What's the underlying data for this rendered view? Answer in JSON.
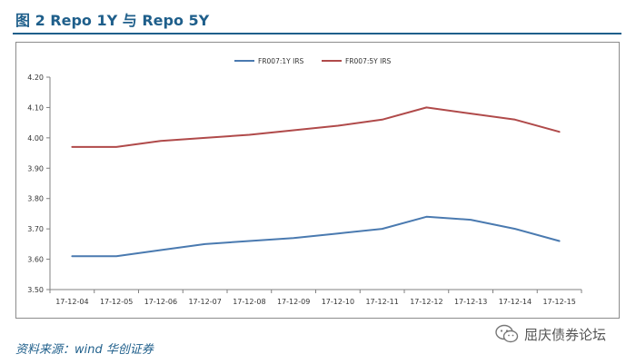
{
  "figure": {
    "title": "图 2 Repo 1Y 与 Repo 5Y",
    "source": "资料来源：wind 华创证券",
    "watermark": "屈庆债券论坛"
  },
  "colors": {
    "title": "#1f5f8b",
    "series_1": "#4a7ab0",
    "series_2": "#b04a4a"
  },
  "chart_data": {
    "type": "line",
    "categories": [
      "17-12-04",
      "17-12-05",
      "17-12-06",
      "17-12-07",
      "17-12-08",
      "17-12-09",
      "17-12-10",
      "17-12-11",
      "17-12-12",
      "17-12-13",
      "17-12-14",
      "17-12-15"
    ],
    "series": [
      {
        "name": "FR007:1Y IRS",
        "color": "#4a7ab0",
        "values": [
          3.61,
          3.61,
          3.63,
          3.65,
          3.66,
          3.67,
          3.685,
          3.7,
          3.74,
          3.73,
          3.7,
          3.66
        ]
      },
      {
        "name": "FR007:5Y IRS",
        "color": "#b04a4a",
        "values": [
          3.97,
          3.97,
          3.99,
          4.0,
          4.01,
          4.025,
          4.04,
          4.06,
          4.1,
          4.08,
          4.06,
          4.02
        ]
      }
    ],
    "yticks": [
      "3.50",
      "3.60",
      "3.70",
      "3.80",
      "3.90",
      "4.00",
      "4.10",
      "4.20"
    ],
    "ylim": [
      3.5,
      4.2
    ],
    "legend": "top-center",
    "grid": false
  }
}
